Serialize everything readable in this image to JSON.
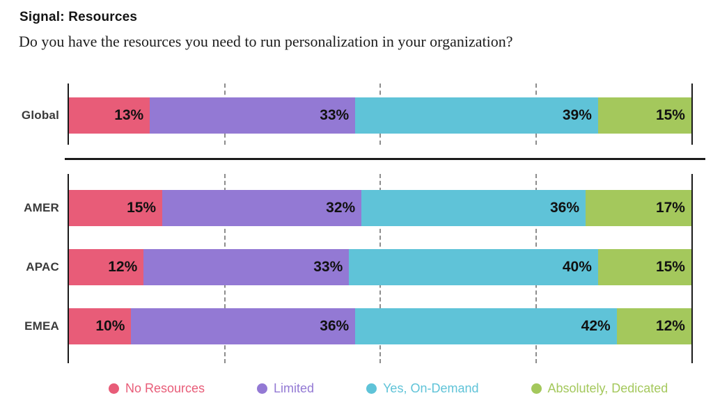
{
  "header": {
    "title": "Signal: Resources",
    "subtitle": "Do you have the resources you need to run personalization in your organization?"
  },
  "chart_data": {
    "type": "bar",
    "variant": "horizontal-stacked",
    "unit": "percent",
    "xlim": [
      0,
      100
    ],
    "gridlines_percent": [
      25,
      50,
      75
    ],
    "grid": "dashed-vertical",
    "legend_position": "bottom",
    "series_labels": [
      "No Resources",
      "Limited",
      "Yes, On-Demand",
      "Absolutely, Dedicated"
    ],
    "series_colors": [
      "#E85C78",
      "#9379D4",
      "#5FC3D8",
      "#A4C85C"
    ],
    "groups": [
      {
        "label": "Global",
        "values": [
          13,
          33,
          39,
          15
        ],
        "value_labels": [
          "13%",
          "33%",
          "39%",
          "15%"
        ]
      },
      {
        "label": "AMER",
        "values": [
          15,
          32,
          36,
          17
        ],
        "value_labels": [
          "15%",
          "32%",
          "36%",
          "17%"
        ]
      },
      {
        "label": "APAC",
        "values": [
          12,
          33,
          40,
          15
        ],
        "value_labels": [
          "12%",
          "33%",
          "40%",
          "15%"
        ]
      },
      {
        "label": "EMEA",
        "values": [
          10,
          36,
          42,
          12
        ],
        "value_labels": [
          "10%",
          "36%",
          "42%",
          "12%"
        ]
      }
    ]
  },
  "legend": {
    "items": [
      {
        "label": "No Resources",
        "color": "#E85C78"
      },
      {
        "label": "Limited",
        "color": "#9379D4"
      },
      {
        "label": "Yes, On-Demand",
        "color": "#5FC3D8"
      },
      {
        "label": "Absolutely, Dedicated",
        "color": "#A4C85C"
      }
    ]
  }
}
